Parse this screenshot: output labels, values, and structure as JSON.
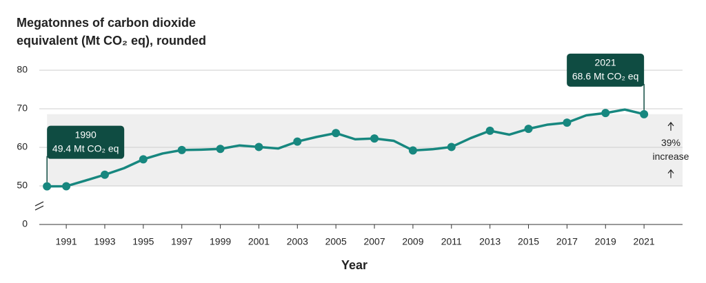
{
  "chart_data": {
    "type": "line",
    "title": [
      "Megatonnes of carbon dioxide",
      "equivalent (Mt CO₂ eq), rounded"
    ],
    "x_label": "Year",
    "x": [
      1990,
      1991,
      1992,
      1993,
      1994,
      1995,
      1996,
      1997,
      1998,
      1999,
      2000,
      2001,
      2002,
      2003,
      2004,
      2005,
      2006,
      2007,
      2008,
      2009,
      2010,
      2011,
      2012,
      2013,
      2014,
      2015,
      2016,
      2017,
      2018,
      2019,
      2020,
      2021
    ],
    "series": [
      {
        "color": "#17877f",
        "values": [
          49.4,
          49.6,
          51.4,
          52.9,
          54.6,
          56.9,
          58.4,
          59.3,
          59.4,
          59.6,
          60.5,
          60.1,
          59.7,
          61.5,
          62.7,
          63.7,
          62.1,
          62.3,
          61.7,
          59.2,
          59.5,
          60.1,
          62.4,
          64.3,
          63.3,
          64.8,
          65.9,
          66.4,
          68.3,
          68.9,
          69.8,
          68.6
        ]
      }
    ],
    "xlim": [
      1989.6,
      2023
    ],
    "xticks": [
      1991,
      1993,
      1995,
      1997,
      1999,
      2001,
      2003,
      2005,
      2007,
      2009,
      2011,
      2013,
      2015,
      2017,
      2019,
      2021
    ],
    "ylim": [
      0,
      80
    ],
    "yticks": [
      0,
      50,
      60,
      70,
      80
    ],
    "axis_break": [
      0,
      50
    ],
    "grid": true,
    "annotations": [
      {
        "x": 1990,
        "lines": [
          "1990",
          "49.4 Mt CO₂ eq"
        ]
      },
      {
        "x": 2021,
        "lines": [
          "2021",
          "68.6 Mt CO₂ eq"
        ]
      }
    ],
    "change_label": [
      "39%",
      "increase"
    ],
    "annotation_color": "#0f4c42",
    "band_color": "#efefef"
  }
}
